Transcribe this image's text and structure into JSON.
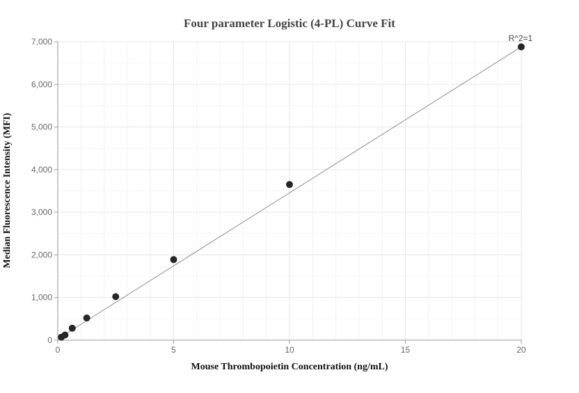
{
  "chart_data": {
    "type": "scatter",
    "title": "Four parameter Logistic (4-PL) Curve Fit",
    "xlabel": "Mouse Thrombopoietin Concentration (ng/mL)",
    "ylabel": "Median Fluorescence Intensity (MFI)",
    "xlim": [
      0,
      20
    ],
    "ylim": [
      0,
      7000
    ],
    "x_ticks": [
      0,
      5,
      10,
      15,
      20
    ],
    "x_tick_labels": [
      "0",
      "5",
      "10",
      "15",
      "20"
    ],
    "y_ticks": [
      0,
      1000,
      2000,
      3000,
      4000,
      5000,
      6000,
      7000
    ],
    "y_tick_labels": [
      "0",
      "1,000",
      "2,000",
      "3,000",
      "4,000",
      "5,000",
      "6,000",
      "7,000"
    ],
    "points": [
      {
        "x": 0.156,
        "y": 70
      },
      {
        "x": 0.313,
        "y": 120
      },
      {
        "x": 0.625,
        "y": 280
      },
      {
        "x": 1.25,
        "y": 520
      },
      {
        "x": 2.5,
        "y": 1020
      },
      {
        "x": 5,
        "y": 1890
      },
      {
        "x": 10,
        "y": 3650
      },
      {
        "x": 20,
        "y": 6880
      }
    ],
    "fit_line": {
      "x": [
        0,
        20
      ],
      "y": [
        30,
        6880
      ]
    },
    "annotation": "R^2=1",
    "grid": true,
    "colors": {
      "point": "#262626",
      "line": "#8c8c8c",
      "grid": "#e6e6e6",
      "axis": "#999999",
      "tick_text": "#666666",
      "title": "#444444"
    }
  }
}
